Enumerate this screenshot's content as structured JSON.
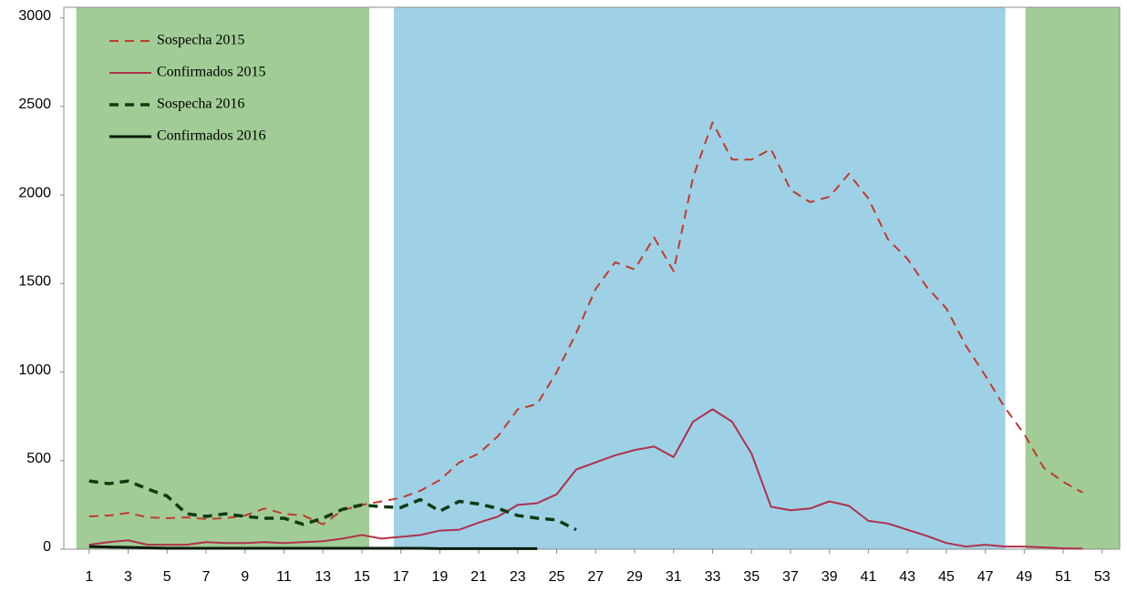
{
  "chart_data": {
    "type": "line",
    "x": [
      1,
      2,
      3,
      4,
      5,
      6,
      7,
      8,
      9,
      10,
      11,
      12,
      13,
      14,
      15,
      16,
      17,
      18,
      19,
      20,
      21,
      22,
      23,
      24,
      25,
      26,
      27,
      28,
      29,
      30,
      31,
      32,
      33,
      34,
      35,
      36,
      37,
      38,
      39,
      40,
      41,
      42,
      43,
      44,
      45,
      46,
      47,
      48,
      49,
      50,
      51,
      52
    ],
    "series": [
      {
        "name": "Sospecha 2015",
        "color": "#c23a2b",
        "dashed": true,
        "width": 2,
        "values": [
          185,
          190,
          205,
          180,
          175,
          180,
          170,
          175,
          190,
          230,
          200,
          190,
          140,
          220,
          250,
          270,
          290,
          330,
          390,
          490,
          540,
          640,
          790,
          820,
          1000,
          1220,
          1470,
          1620,
          1580,
          1760,
          1570,
          2100,
          2410,
          2200,
          2200,
          2260,
          2030,
          1960,
          1990,
          2120,
          1980,
          1750,
          1640,
          1480,
          1360,
          1150,
          980,
          800,
          650,
          460,
          380,
          320
        ]
      },
      {
        "name": "Confirmados 2015",
        "color": "#b0304a",
        "dashed": false,
        "width": 2,
        "values": [
          25,
          40,
          50,
          25,
          25,
          25,
          40,
          35,
          35,
          40,
          35,
          40,
          45,
          60,
          80,
          60,
          70,
          80,
          105,
          110,
          150,
          185,
          250,
          260,
          310,
          450,
          490,
          530,
          560,
          580,
          520,
          720,
          790,
          720,
          540,
          240,
          220,
          230,
          270,
          245,
          160,
          145,
          110,
          75,
          35,
          15,
          25,
          15,
          15,
          10,
          5,
          3
        ]
      },
      {
        "name": "Sospecha 2016",
        "color": "#0f3a12",
        "dashed": true,
        "width": 3.5,
        "values": [
          385,
          370,
          385,
          340,
          300,
          200,
          185,
          200,
          185,
          175,
          175,
          140,
          175,
          225,
          250,
          240,
          235,
          280,
          215,
          270,
          255,
          230,
          190,
          175,
          165,
          110,
          null,
          null,
          null,
          null,
          null,
          null,
          null,
          null,
          null,
          null,
          null,
          null,
          null,
          null,
          null,
          null,
          null,
          null,
          null,
          null,
          null,
          null,
          null,
          null,
          null,
          null
        ]
      },
      {
        "name": "Confirmados 2016",
        "color": "#061a08",
        "dashed": false,
        "width": 3,
        "values": [
          15,
          12,
          10,
          8,
          5,
          5,
          5,
          5,
          5,
          5,
          5,
          5,
          5,
          5,
          5,
          5,
          5,
          5,
          3,
          3,
          3,
          3,
          3,
          3,
          null,
          null,
          null,
          null,
          null,
          null,
          null,
          null,
          null,
          null,
          null,
          null,
          null,
          null,
          null,
          null,
          null,
          null,
          null,
          null,
          null,
          null,
          null,
          null,
          null,
          null,
          null,
          null
        ]
      }
    ],
    "bands": [
      {
        "x0": 0.34,
        "x1": 15.38,
        "color": "#a1cc96"
      },
      {
        "x0": 16.64,
        "x1": 48.03,
        "color": "#9ed1e6"
      },
      {
        "x0": 49.06,
        "x1": 53.9,
        "color": "#a1cc96"
      }
    ],
    "xlim": [
      -0.3,
      53.9
    ],
    "ylim": [
      0,
      3060
    ],
    "xticks": [
      1,
      3,
      5,
      7,
      9,
      11,
      13,
      15,
      17,
      19,
      21,
      23,
      25,
      27,
      29,
      31,
      33,
      35,
      37,
      39,
      41,
      43,
      45,
      47,
      49,
      51,
      53
    ],
    "yticks": [
      0,
      500,
      1000,
      1500,
      2000,
      2500,
      3000
    ],
    "legend": "upper left"
  }
}
